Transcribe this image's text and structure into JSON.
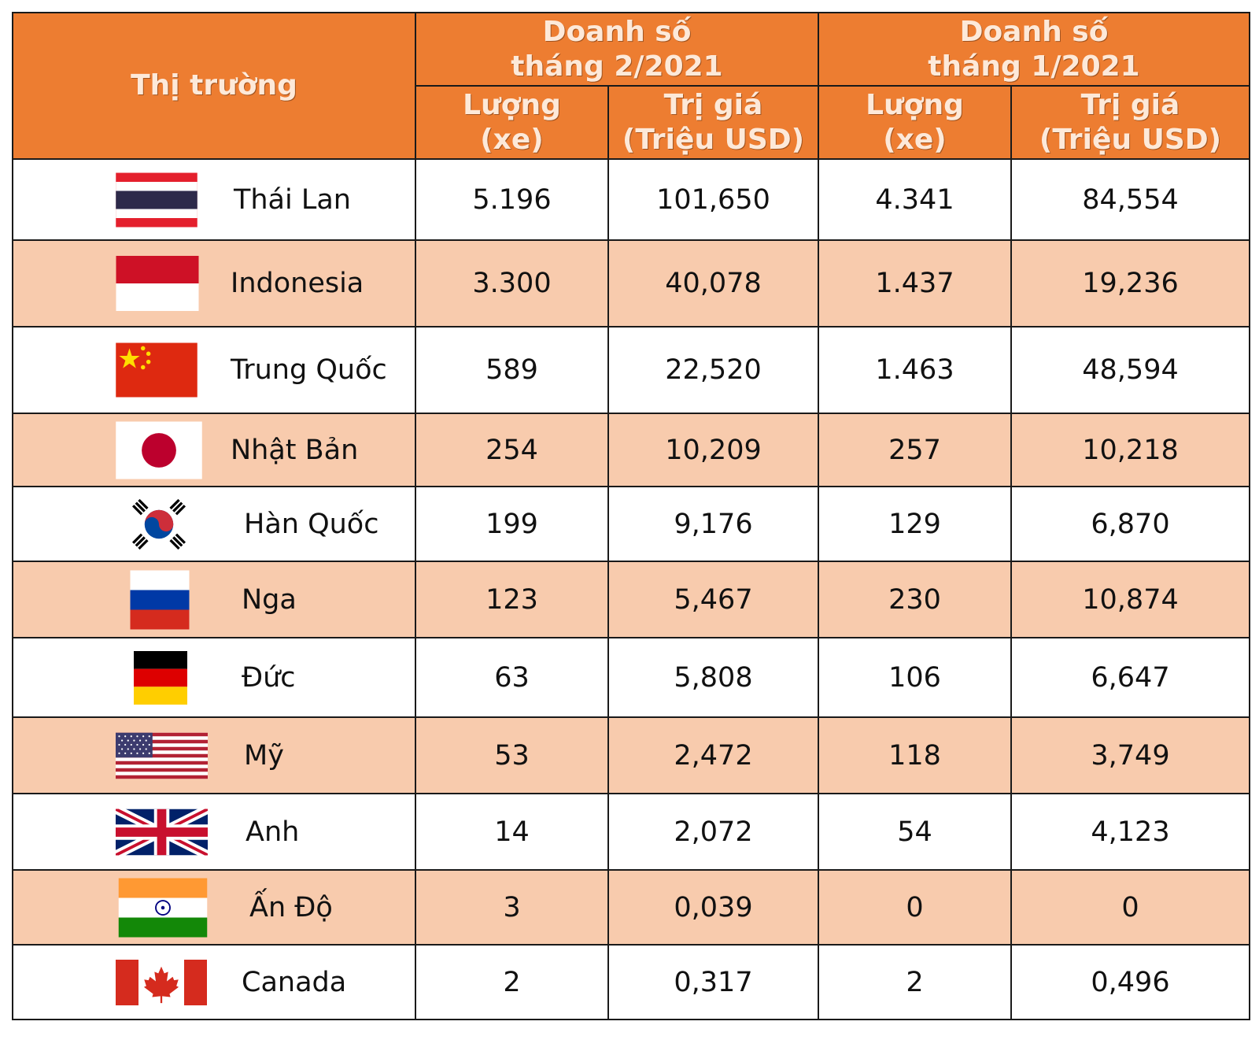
{
  "header": {
    "market": "Thị trường",
    "period1": [
      "Doanh số",
      "tháng 2/2021"
    ],
    "period2": [
      "Doanh số",
      "tháng 1/2021"
    ],
    "qty": [
      "Lượng",
      "(xe)"
    ],
    "value": [
      "Trị giá",
      "(Triệu USD)"
    ]
  },
  "colors": {
    "header_bg": "#ed7d31",
    "header_text": "#fde9d9",
    "stripe": "#f8cbad"
  },
  "rows": [
    {
      "market": "Thái Lan",
      "flag": "thailand-flag-icon",
      "feb_qty": "5.196",
      "feb_value": "101,650",
      "jan_qty": "4.341",
      "jan_value": "84,554"
    },
    {
      "market": "Indonesia",
      "flag": "indonesia-flag-icon",
      "feb_qty": "3.300",
      "feb_value": "40,078",
      "jan_qty": "1.437",
      "jan_value": "19,236"
    },
    {
      "market": "Trung Quốc",
      "flag": "china-flag-icon",
      "feb_qty": "589",
      "feb_value": "22,520",
      "jan_qty": "1.463",
      "jan_value": "48,594"
    },
    {
      "market": "Nhật Bản",
      "flag": "japan-flag-icon",
      "feb_qty": "254",
      "feb_value": "10,209",
      "jan_qty": "257",
      "jan_value": "10,218"
    },
    {
      "market": "Hàn Quốc",
      "flag": "south-korea-flag-icon",
      "feb_qty": "199",
      "feb_value": "9,176",
      "jan_qty": "129",
      "jan_value": "6,870"
    },
    {
      "market": "Nga",
      "flag": "russia-flag-icon",
      "feb_qty": "123",
      "feb_value": "5,467",
      "jan_qty": "230",
      "jan_value": "10,874"
    },
    {
      "market": "Đức",
      "flag": "germany-flag-icon",
      "feb_qty": "63",
      "feb_value": "5,808",
      "jan_qty": "106",
      "jan_value": "6,647"
    },
    {
      "market": "Mỹ",
      "flag": "usa-flag-icon",
      "feb_qty": "53",
      "feb_value": "2,472",
      "jan_qty": "118",
      "jan_value": "3,749"
    },
    {
      "market": "Anh",
      "flag": "uk-flag-icon",
      "feb_qty": "14",
      "feb_value": "2,072",
      "jan_qty": "54",
      "jan_value": "4,123"
    },
    {
      "market": "Ấn Độ",
      "flag": "india-flag-icon",
      "feb_qty": "3",
      "feb_value": "0,039",
      "jan_qty": "0",
      "jan_value": "0"
    },
    {
      "market": "Canada",
      "flag": "canada-flag-icon",
      "feb_qty": "2",
      "feb_value": "0,317",
      "jan_qty": "2",
      "jan_value": "0,496"
    }
  ]
}
